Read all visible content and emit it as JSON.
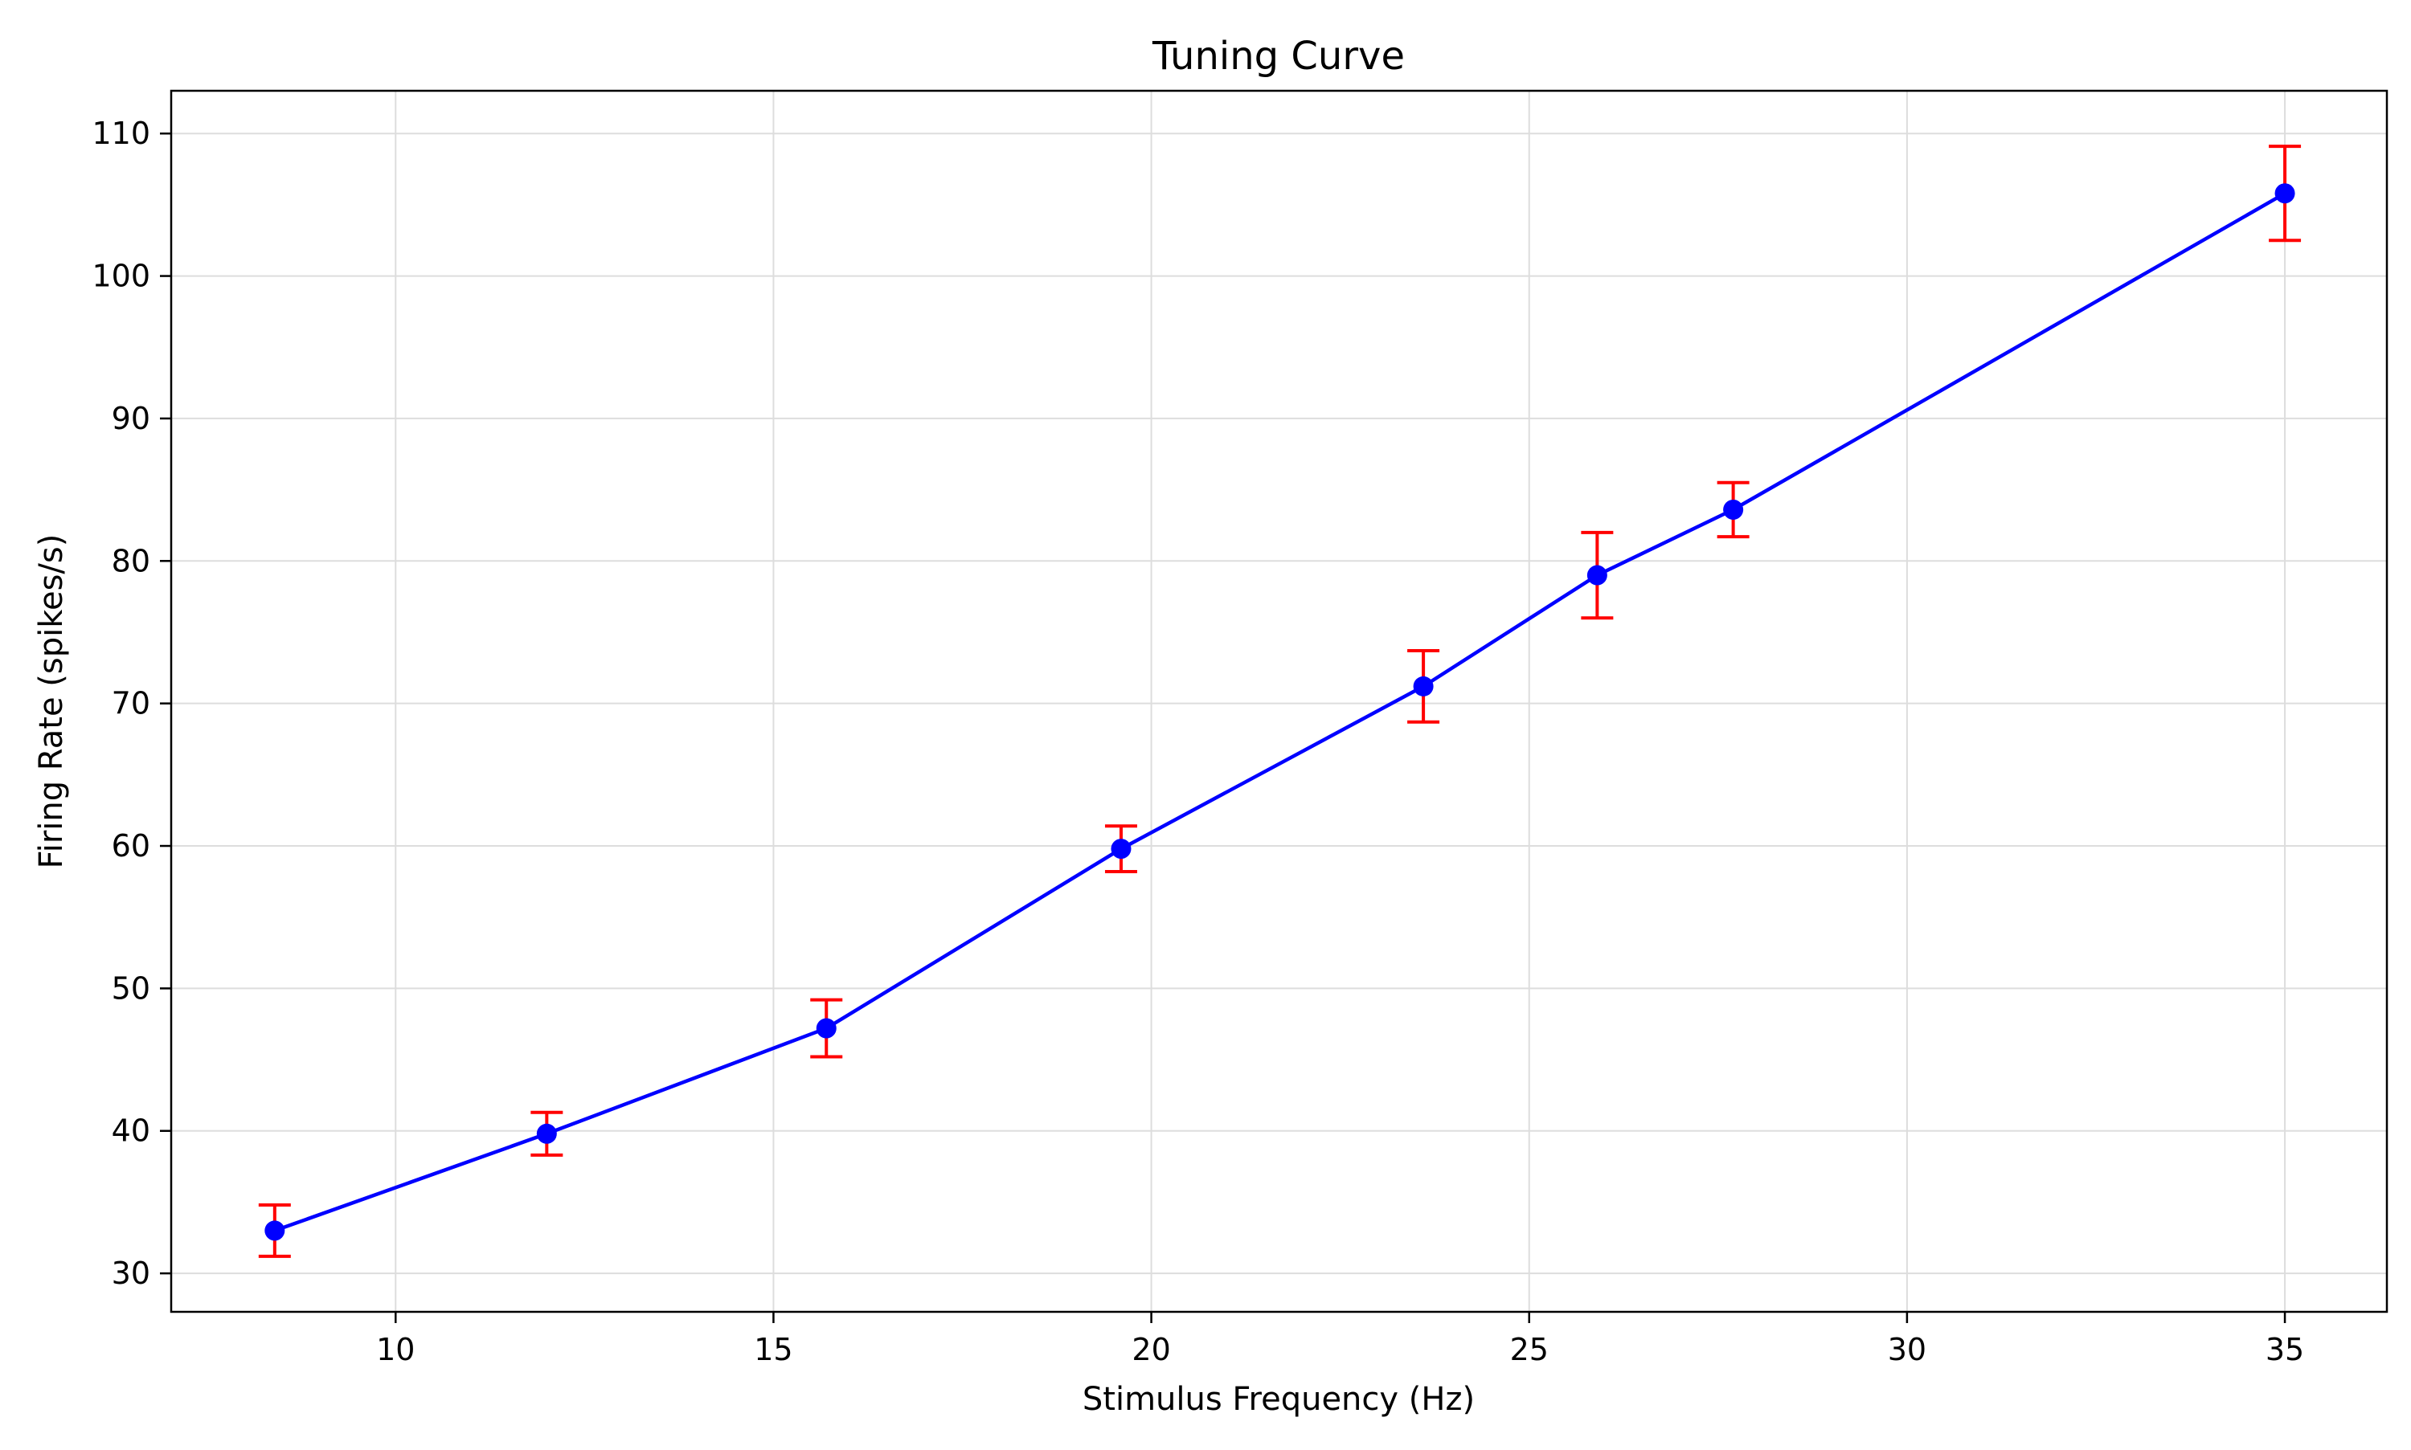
{
  "chart_data": {
    "type": "line",
    "title": "Tuning Curve",
    "xlabel": "Stimulus Frequency (Hz)",
    "ylabel": "Firing Rate (spikes/s)",
    "xlim": [
      7.03,
      36.35
    ],
    "ylim": [
      27.3,
      113.0
    ],
    "xticks": [
      10,
      15,
      20,
      25,
      30,
      35
    ],
    "yticks": [
      30,
      40,
      50,
      60,
      70,
      80,
      90,
      100,
      110
    ],
    "grid": true,
    "legend": null,
    "series": [
      {
        "color": "#0000ff",
        "marker": "circle",
        "error_color": "#ff0000",
        "points": [
          {
            "x": 8.4,
            "y": 33.0,
            "err": 1.8
          },
          {
            "x": 12.0,
            "y": 39.8,
            "err": 1.5
          },
          {
            "x": 15.7,
            "y": 47.2,
            "err": 2.0
          },
          {
            "x": 19.6,
            "y": 59.8,
            "err": 1.6
          },
          {
            "x": 23.6,
            "y": 71.2,
            "err": 2.5
          },
          {
            "x": 25.9,
            "y": 79.0,
            "err": 3.0
          },
          {
            "x": 27.7,
            "y": 83.6,
            "err": 1.9
          },
          {
            "x": 35.0,
            "y": 105.8,
            "err": 3.3
          }
        ]
      }
    ]
  }
}
